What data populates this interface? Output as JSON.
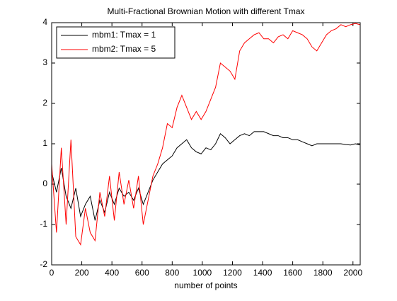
{
  "chart_data": {
    "type": "line",
    "title": "Multi-Fractional Brownian Motion with different Tmax",
    "xlabel": "number of points",
    "x": [
      0,
      32,
      64,
      96,
      128,
      160,
      192,
      224,
      256,
      288,
      320,
      352,
      384,
      416,
      448,
      480,
      512,
      544,
      576,
      608,
      640,
      672,
      704,
      736,
      768,
      800,
      832,
      864,
      896,
      928,
      960,
      992,
      1024,
      1056,
      1088,
      1120,
      1152,
      1184,
      1216,
      1248,
      1280,
      1312,
      1344,
      1376,
      1408,
      1440,
      1472,
      1504,
      1536,
      1568,
      1600,
      1632,
      1664,
      1696,
      1728,
      1760,
      1792,
      1824,
      1856,
      1888,
      1920,
      1952,
      1984,
      2016,
      2048
    ],
    "series": [
      {
        "name": "mbm1: Tmax = 1",
        "color": "#000000",
        "values": [
          0.3,
          -0.2,
          0.4,
          -0.3,
          -0.6,
          -0.1,
          -0.8,
          -0.5,
          -0.3,
          -0.9,
          -0.4,
          -0.7,
          -0.2,
          -0.5,
          -0.1,
          -0.3,
          -0.2,
          -0.4,
          -0.1,
          -0.5,
          -0.2,
          0.1,
          0.3,
          0.5,
          0.6,
          0.7,
          0.9,
          1.0,
          1.1,
          0.9,
          0.8,
          0.75,
          0.9,
          0.85,
          1.0,
          1.25,
          1.15,
          1.0,
          1.1,
          1.2,
          1.25,
          1.2,
          1.3,
          1.3,
          1.3,
          1.25,
          1.2,
          1.2,
          1.15,
          1.15,
          1.1,
          1.1,
          1.05,
          1.0,
          0.95,
          1.0,
          1.0,
          1.0,
          1.0,
          1.0,
          1.0,
          0.98,
          0.97,
          1.0,
          0.97
        ]
      },
      {
        "name": "mbm2: Tmax = 5",
        "color": "#ff0000",
        "values": [
          0.5,
          -1.2,
          0.9,
          -1.0,
          1.1,
          -1.3,
          -1.5,
          -0.6,
          -1.2,
          -1.4,
          -0.2,
          -0.8,
          0.2,
          -0.9,
          0.3,
          -0.5,
          0.1,
          -0.6,
          0.2,
          -1.0,
          -0.4,
          0.2,
          0.5,
          0.9,
          1.5,
          1.4,
          1.9,
          2.2,
          1.9,
          1.6,
          1.8,
          1.6,
          1.8,
          2.1,
          2.4,
          3.0,
          2.9,
          2.8,
          2.6,
          3.3,
          3.5,
          3.6,
          3.7,
          3.75,
          3.6,
          3.6,
          3.5,
          3.65,
          3.7,
          3.6,
          3.8,
          3.75,
          3.7,
          3.6,
          3.4,
          3.3,
          3.5,
          3.7,
          3.8,
          3.85,
          3.95,
          3.9,
          3.95,
          3.98,
          3.95
        ]
      }
    ],
    "xlim": [
      0,
      2048
    ],
    "xticks": [
      0,
      200,
      400,
      600,
      800,
      1000,
      1200,
      1400,
      1600,
      1800,
      2000
    ],
    "ylim": [
      -2,
      4
    ],
    "yticks": [
      -2,
      -1,
      0,
      1,
      2,
      3,
      4
    ],
    "legend": "upper left"
  }
}
